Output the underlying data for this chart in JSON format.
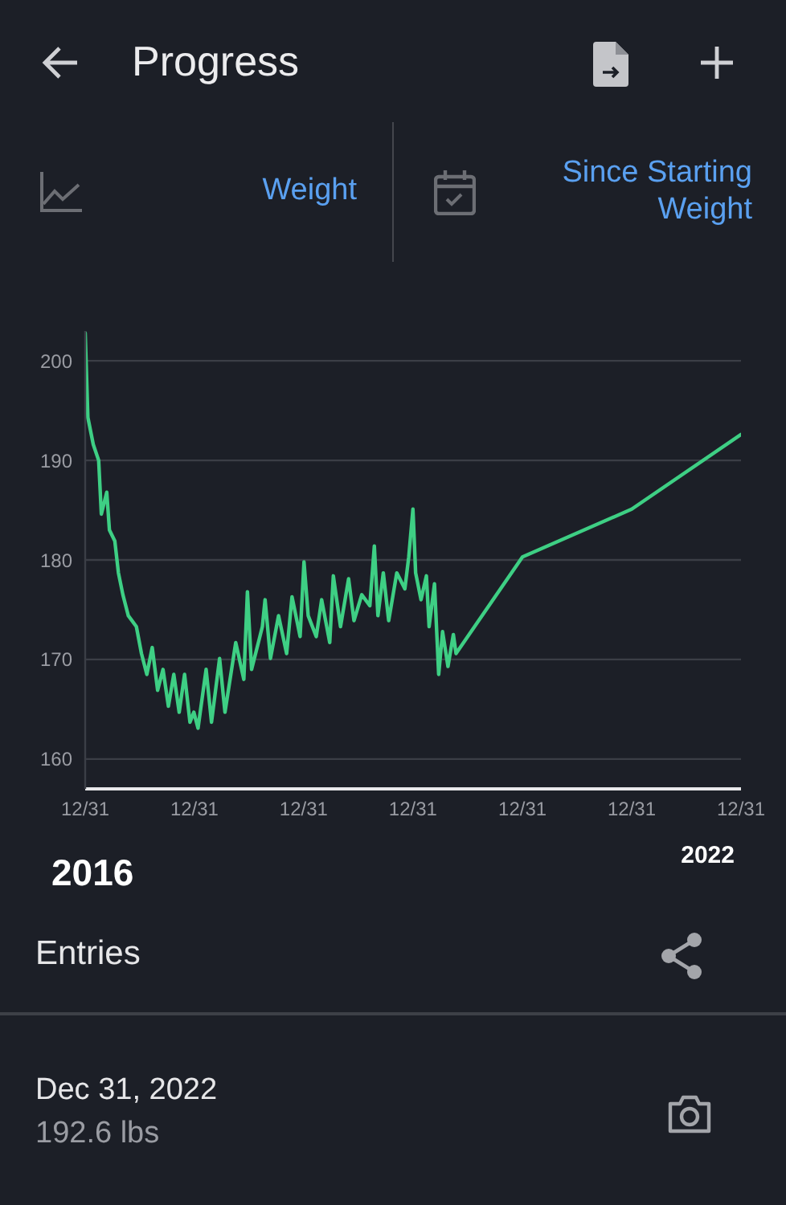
{
  "chart_data": {
    "type": "line",
    "title": "Progress",
    "annotations": [
      "Weight",
      "Since Starting Weight",
      "2016",
      "2022",
      "Entries",
      "Dec 31, 2022",
      "192.6 lbs"
    ],
    "x": [
      "2016-12-31",
      "2017-01-09",
      "2017-01-27",
      "2017-02-14",
      "2017-02-23",
      "2017-03-13",
      "2017-03-22",
      "2017-04-09",
      "2017-04-21",
      "2017-05-06",
      "2017-05-24",
      "2017-06-20",
      "2017-07-07",
      "2017-07-25",
      "2017-08-12",
      "2017-08-30",
      "2017-09-17",
      "2017-10-05",
      "2017-10-23",
      "2017-11-10",
      "2017-11-28",
      "2017-12-16",
      "2017-12-29",
      "2018-01-12",
      "2018-02-08",
      "2018-02-26",
      "2018-03-25",
      "2018-04-12",
      "2018-05-18",
      "2018-06-14",
      "2018-06-26",
      "2018-07-10",
      "2018-08-15",
      "2018-08-24",
      "2018-09-11",
      "2018-10-08",
      "2018-11-04",
      "2018-11-22",
      "2018-12-19",
      "2019-01-01",
      "2019-01-15",
      "2019-02-11",
      "2019-03-01",
      "2019-03-28",
      "2019-04-09",
      "2019-05-03",
      "2019-05-30",
      "2019-06-17",
      "2019-07-13",
      "2019-08-09",
      "2019-08-24",
      "2019-09-05",
      "2019-09-23",
      "2019-10-11",
      "2019-11-07",
      "2019-12-04",
      "2019-12-17",
      "2019-12-31",
      "2020-01-09",
      "2020-01-27",
      "2020-02-14",
      "2020-02-23",
      "2020-03-12",
      "2020-03-26",
      "2020-04-08",
      "2020-04-26",
      "2020-05-14",
      "2020-05-23",
      "2020-12-31",
      "2021-12-31",
      "2022-12-31"
    ],
    "values": [
      202.8,
      194.3,
      191.6,
      190,
      184.6,
      186.8,
      183,
      181.9,
      178.7,
      176.5,
      174.4,
      173.3,
      170.6,
      168.5,
      171.2,
      166.9,
      169,
      165.3,
      168.5,
      164.7,
      168.5,
      163.7,
      164.7,
      163.1,
      169,
      163.7,
      170.1,
      164.7,
      171.7,
      168,
      176.8,
      169,
      173.3,
      176,
      170.1,
      174.4,
      170.6,
      176.3,
      172.3,
      179.8,
      174.4,
      172.3,
      176,
      171.7,
      178.4,
      173.3,
      178.1,
      173.9,
      176.5,
      175.4,
      181.4,
      174.4,
      178.7,
      173.9,
      178.7,
      177.1,
      180.3,
      185.1,
      178.7,
      176,
      178.4,
      173.3,
      177.6,
      168.5,
      172.8,
      169.3,
      172.5,
      170.6,
      180.3,
      185.1,
      192.6
    ],
    "color": "#3ecf84",
    "marker": "none",
    "line_style": "solid",
    "xlim": [
      "2016-12-31",
      "2022-12-31"
    ],
    "xticks": [
      {
        "value": "2016-12-31",
        "label": "12/31"
      },
      {
        "value": "2017-12-31",
        "label": "12/31"
      },
      {
        "value": "2018-12-31",
        "label": "12/31"
      },
      {
        "value": "2019-12-31",
        "label": "12/31"
      },
      {
        "value": "2020-12-31",
        "label": "12/31"
      },
      {
        "value": "2021-12-31",
        "label": "12/31"
      },
      {
        "value": "2022-12-31",
        "label": "12/31"
      }
    ],
    "ylim": [
      157,
      203
    ],
    "yticks": [
      160,
      170,
      180,
      190,
      200
    ],
    "grid": "y"
  }
}
